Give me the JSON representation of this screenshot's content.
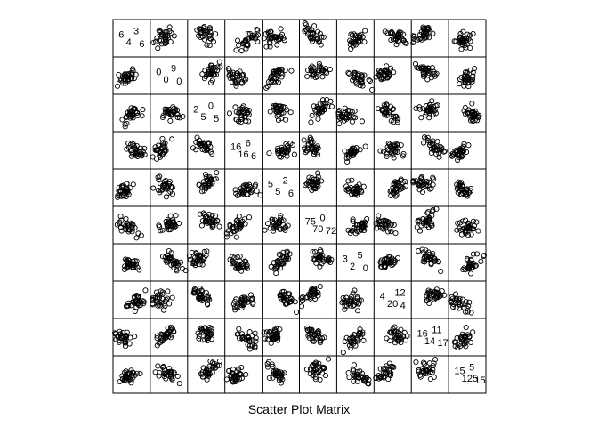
{
  "chart_data": {
    "type": "scatter",
    "title": "Scatter Plot Matrix",
    "variables": 10,
    "ylim": [
      0,
      1
    ],
    "xlim": [
      0,
      1
    ],
    "grid": false,
    "legend": "none",
    "point_style": "open-circle",
    "point_color": "#000000",
    "diagonal_labels": [
      [
        "6",
        "3",
        "4",
        "6"
      ],
      [
        "0",
        "9",
        "0",
        "0"
      ],
      [
        "2",
        "0",
        "5",
        "5"
      ],
      [
        "16",
        "6",
        "16",
        "6"
      ],
      [
        "5",
        "2",
        "5",
        "6"
      ],
      [
        "75",
        "0",
        "70",
        "72"
      ],
      [
        "3",
        "5",
        "2",
        "0"
      ],
      [
        "4",
        "12",
        "20",
        "4"
      ],
      [
        "16",
        "11",
        "14",
        "17"
      ],
      [
        "15",
        "5",
        "125",
        "15"
      ]
    ]
  }
}
